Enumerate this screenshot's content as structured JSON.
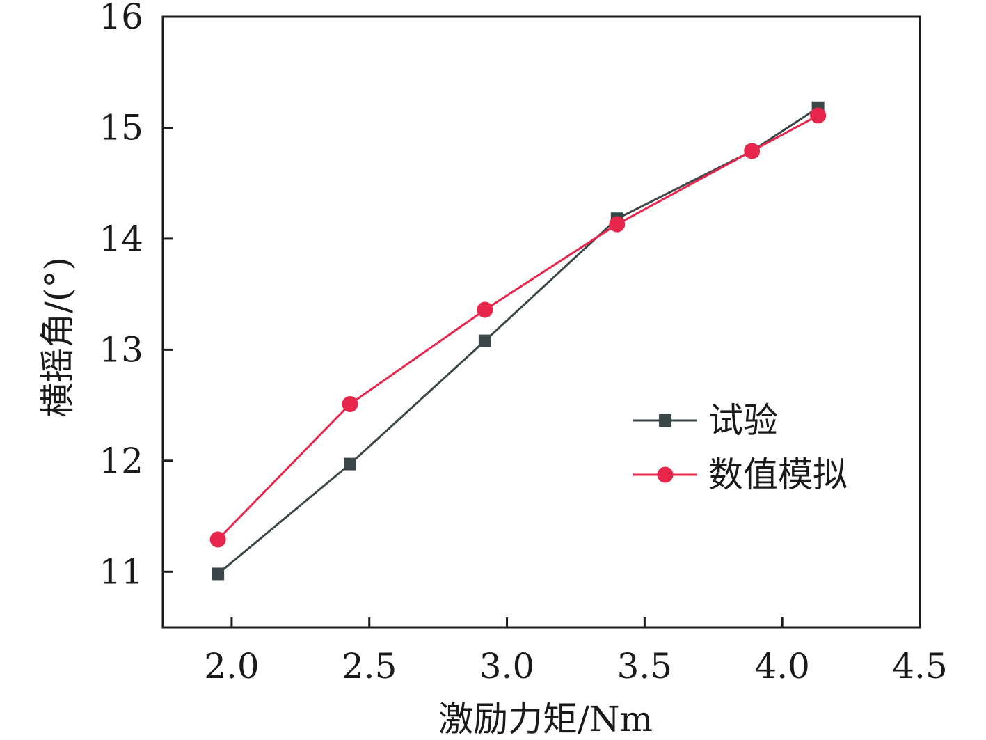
{
  "chart_data": {
    "type": "line",
    "title": "",
    "xlabel": "激励力矩/Nm",
    "ylabel": "横摇角/(°)",
    "xlim": [
      1.75,
      4.5
    ],
    "ylim": [
      10.5,
      16
    ],
    "xticks": [
      2.0,
      2.5,
      3.0,
      3.5,
      4.0,
      4.5
    ],
    "xtick_labels": [
      "2.0",
      "2.5",
      "3.0",
      "3.5",
      "4.0",
      "4.5"
    ],
    "yticks": [
      11,
      12,
      13,
      14,
      15,
      16
    ],
    "ytick_labels": [
      "11",
      "12",
      "13",
      "14",
      "15",
      "16"
    ],
    "grid": false,
    "legend_position": "center-right",
    "series": [
      {
        "name": "试验",
        "marker": "square",
        "color": "#3b4649",
        "x": [
          1.95,
          2.43,
          2.92,
          3.4,
          3.89,
          4.13
        ],
        "y": [
          10.98,
          11.97,
          13.08,
          14.18,
          14.79,
          15.18
        ]
      },
      {
        "name": "数值模拟",
        "marker": "circle",
        "color": "#e8254b",
        "x": [
          1.95,
          2.43,
          2.92,
          3.4,
          3.89,
          4.13
        ],
        "y": [
          11.29,
          12.51,
          13.36,
          14.13,
          14.79,
          15.11
        ]
      }
    ]
  }
}
